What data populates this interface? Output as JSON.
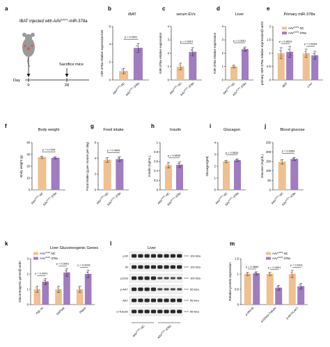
{
  "colors": {
    "nc": "#F0C08E",
    "mir": "#A07CC0",
    "nc_dark": "#D9995A",
    "mir_dark": "#7E56A4",
    "band": "#1b1b1b",
    "mouse": "#9a9a9a"
  },
  "panel_a": {
    "letter": "a",
    "title": "iBAT injected with AAV",
    "title_sup": "UCP1",
    "title_suffix": "-miR-378a",
    "day_label": "Day",
    "days": [
      "0",
      "28"
    ],
    "sacrifice": "Sacrifice mice",
    "icon": "mouse-icon"
  },
  "panel_l": {
    "letter": "l",
    "title": "Liver",
    "bands": [
      "p-IR",
      "IR",
      "p110α",
      "p-AKT",
      "AKT",
      "α-Tubulin"
    ],
    "sizes": [
      "100 kDa",
      "100 kDa",
      "100 kDa",
      "55 kDa",
      "55 kDa",
      "55 kDa"
    ],
    "groups": [
      "AAV",
      "AAV"
    ],
    "group_sup": "UCP1",
    "group_suffix": [
      "-NC",
      "-378a"
    ]
  },
  "chart_data": [
    {
      "id": "b",
      "type": "bar",
      "title": "iBAT",
      "ylabel": "miR-378a relative expression/U6",
      "ylim": [
        0,
        6
      ],
      "yticks": [
        0,
        2,
        4,
        6
      ],
      "categories": [
        "NC",
        "378a"
      ],
      "values": [
        1.0,
        3.6
      ],
      "errors": [
        0.3,
        0.5
      ],
      "pvalues": [
        "p < 0.0001"
      ]
    },
    {
      "id": "c",
      "type": "bar",
      "title": "serum EVs",
      "ylabel": "miR-378a relative expression",
      "ylim": [
        0,
        4
      ],
      "yticks": [
        0,
        1,
        2,
        3,
        4
      ],
      "categories": [
        "NC",
        "378a"
      ],
      "values": [
        1.0,
        2.1
      ],
      "errors": [
        0.25,
        0.3
      ],
      "pvalues": [
        "p = 0.0001"
      ]
    },
    {
      "id": "d",
      "type": "bar",
      "title": "Liver",
      "ylabel": "miR-378a relative expression",
      "ylim": [
        0,
        4
      ],
      "yticks": [
        0,
        1,
        2,
        3,
        4
      ],
      "categories": [
        "NC",
        "378a"
      ],
      "values": [
        1.0,
        2.3
      ],
      "errors": [
        0.1,
        0.15
      ],
      "pvalues": [
        "p < 0.0001"
      ]
    },
    {
      "id": "e",
      "type": "bar",
      "title": "Primary miR-378a",
      "ylabel": "primary miR-378a relative expression/β-actin",
      "ylim": [
        0,
        2
      ],
      "yticks": [
        0,
        0.5,
        1,
        1.5,
        2
      ],
      "groups": [
        "iBAT",
        "Liver"
      ],
      "series": [
        {
          "name": "NC",
          "values": [
            1.0,
            1.0
          ],
          "errors": [
            0.2,
            0.15
          ]
        },
        {
          "name": "378a",
          "values": [
            1.05,
            0.92
          ],
          "errors": [
            0.2,
            0.15
          ]
        }
      ],
      "pvalues": [
        "p = 0.8510",
        "p = 0.6294"
      ],
      "legend": [
        "AAV",
        "AAV"
      ],
      "legend_sup": "UCP1",
      "legend_suffix": [
        "-NC",
        "-378a"
      ]
    },
    {
      "id": "f",
      "type": "bar",
      "title": "Body weight",
      "ylabel": "Body weight (g)",
      "ylim": [
        0,
        40
      ],
      "yticks": [
        0,
        10,
        20,
        30,
        40
      ],
      "categories": [
        "NC",
        "378a"
      ],
      "values": [
        27.5,
        27.0
      ],
      "errors": [
        1.0,
        1.0
      ],
      "pvalues": [
        "p = 0.7294"
      ]
    },
    {
      "id": "g",
      "type": "bar",
      "title": "Food intake",
      "ylabel": "Food intake (g per mouse per day)",
      "ylim": [
        0,
        6
      ],
      "yticks": [
        0,
        2,
        4,
        6
      ],
      "categories": [
        "NC",
        "378a"
      ],
      "values": [
        3.8,
        3.9
      ],
      "errors": [
        0.3,
        0.3
      ],
      "pvalues": [
        "p = 0.4699"
      ]
    },
    {
      "id": "h",
      "type": "bar",
      "title": "Insulin",
      "ylabel": "Insulin (ng/mL)",
      "ylim": [
        0,
        1.0
      ],
      "yticks": [
        0,
        0.2,
        0.4,
        0.6,
        0.8,
        1.0
      ],
      "categories": [
        "NC",
        "378a"
      ],
      "values": [
        0.52,
        0.53
      ],
      "errors": [
        0.06,
        0.06
      ],
      "pvalues": [
        "p = 0.6539"
      ]
    },
    {
      "id": "i",
      "type": "bar",
      "title": "Glucagon",
      "ylabel": "Glucagon(pM)",
      "ylim": [
        0,
        4
      ],
      "yticks": [
        0,
        1,
        2,
        3,
        4
      ],
      "categories": [
        "NC",
        "378a"
      ],
      "values": [
        2.4,
        2.5
      ],
      "errors": [
        0.1,
        0.1
      ],
      "pvalues": [
        "p = 0.5534"
      ]
    },
    {
      "id": "j",
      "type": "bar",
      "title": "Blood glucose",
      "ylabel": "Glucose (mg/dL)",
      "ylim": [
        0,
        250
      ],
      "yticks": [
        0,
        50,
        100,
        150,
        200,
        250
      ],
      "categories": [
        "NC",
        "378a"
      ],
      "values": [
        148,
        163
      ],
      "errors": [
        12,
        8
      ],
      "pvalues": [
        "p = 0.5359"
      ]
    },
    {
      "id": "k",
      "type": "bar",
      "title": "Liver Gluconeogenic Genes",
      "ylabel": "Gluconeogenic genes/β-actin",
      "ylim": [
        0,
        3
      ],
      "yticks": [
        0,
        1,
        2,
        3
      ],
      "groups": [
        "Pgc-1α",
        "G6Pase",
        "Pepck"
      ],
      "series": [
        {
          "name": "NC",
          "values": [
            1.0,
            1.0,
            1.0
          ],
          "errors": [
            0.2,
            0.2,
            0.2
          ]
        },
        {
          "name": "378a",
          "values": [
            1.5,
            2.1,
            2.0
          ],
          "errors": [
            0.2,
            0.25,
            0.25
          ]
        }
      ],
      "pvalues": [
        "p = 0.0001",
        "p < 0.0001",
        "p < 0.0001"
      ],
      "legend": [
        "AAV",
        "AAV"
      ],
      "legend_sup": "UCP1",
      "legend_suffix": [
        "-NC",
        "-378a"
      ]
    },
    {
      "id": "m",
      "type": "bar",
      "ylabel": "Relative protein expression",
      "ylim": [
        0,
        1.5
      ],
      "yticks": [
        0,
        0.5,
        1.0,
        1.5
      ],
      "groups": [
        "p-IR/t-IR",
        "p110α/α-Tubulin",
        "p-AKT/t-AKT"
      ],
      "series": [
        {
          "name": "NC",
          "values": [
            1.0,
            1.0,
            1.0
          ],
          "errors": [
            0.05,
            0.05,
            0.12
          ]
        },
        {
          "name": "378a",
          "values": [
            1.02,
            0.55,
            0.6
          ],
          "errors": [
            0.05,
            0.08,
            0.1
          ]
        }
      ],
      "pvalues": [
        "p = 0.3684",
        "p = 0.0001",
        "p = 0.0411"
      ],
      "legend": [
        "AAV",
        "AAV"
      ],
      "legend_sup": "UCP1",
      "legend_suffix": [
        "-NC",
        "-378a"
      ]
    }
  ]
}
